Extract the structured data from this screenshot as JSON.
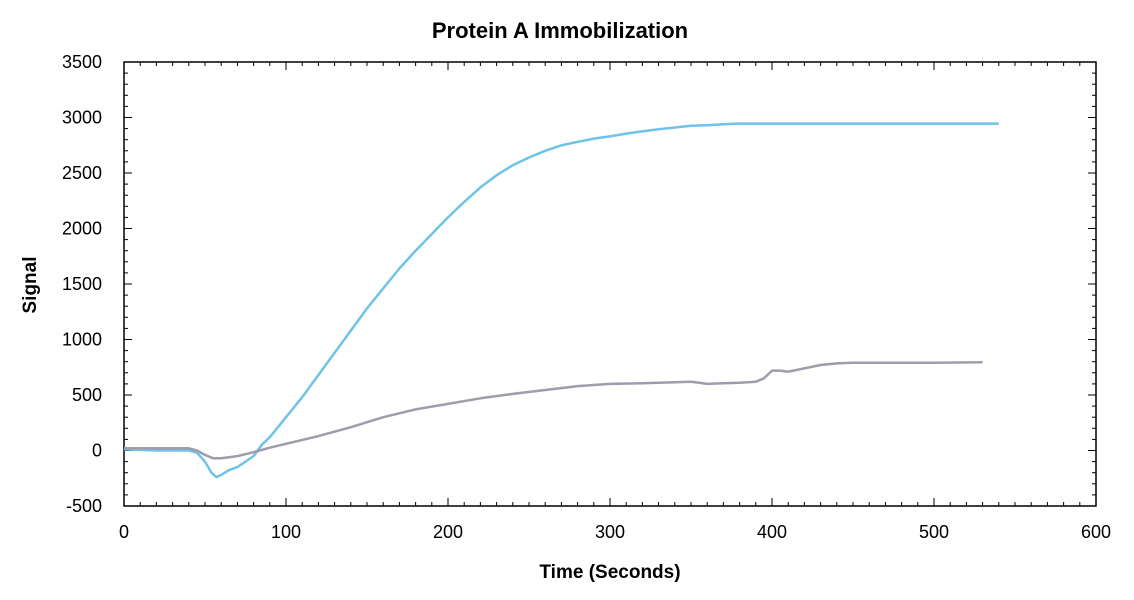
{
  "chart_data": {
    "type": "line",
    "title": "Protein A Immobilization",
    "xlabel": "Time (Seconds)",
    "ylabel": "Signal",
    "xlim": [
      0,
      600
    ],
    "ylim": [
      -500,
      3500
    ],
    "x_ticks": [
      "0",
      "100",
      "200",
      "300",
      "400",
      "500",
      "600"
    ],
    "y_ticks": [
      "-500",
      "0",
      "500",
      "1000",
      "1500",
      "2000",
      "2500",
      "3000",
      "3500"
    ],
    "grid": false,
    "legend": "none",
    "series": [
      {
        "color": "#6EC3E6",
        "x": [
          0,
          10,
          20,
          30,
          40,
          45,
          50,
          54,
          57,
          60,
          65,
          70,
          75,
          80,
          85,
          90,
          100,
          110,
          120,
          130,
          140,
          150,
          160,
          170,
          180,
          190,
          200,
          210,
          220,
          230,
          240,
          250,
          260,
          270,
          280,
          290,
          300,
          310,
          320,
          330,
          340,
          350,
          360,
          370,
          378,
          400,
          450,
          500,
          540
        ],
        "y": [
          10,
          5,
          0,
          0,
          0,
          -20,
          -100,
          -200,
          -240,
          -220,
          -175,
          -150,
          -100,
          -50,
          50,
          120,
          300,
          480,
          680,
          880,
          1080,
          1280,
          1460,
          1640,
          1800,
          1950,
          2100,
          2240,
          2370,
          2480,
          2570,
          2640,
          2700,
          2750,
          2780,
          2810,
          2830,
          2855,
          2875,
          2895,
          2910,
          2925,
          2930,
          2940,
          2945,
          2945,
          2945,
          2945,
          2945
        ]
      },
      {
        "color": "#9F9CAE",
        "x": [
          0,
          10,
          20,
          30,
          40,
          45,
          50,
          55,
          60,
          70,
          80,
          90,
          100,
          120,
          140,
          160,
          180,
          200,
          220,
          240,
          260,
          280,
          300,
          320,
          340,
          350,
          355,
          360,
          370,
          380,
          390,
          395,
          400,
          405,
          410,
          420,
          430,
          440,
          450,
          480,
          500,
          530
        ],
        "y": [
          20,
          20,
          20,
          20,
          20,
          0,
          -40,
          -70,
          -70,
          -50,
          -15,
          25,
          60,
          130,
          210,
          300,
          370,
          420,
          470,
          510,
          545,
          580,
          600,
          605,
          615,
          620,
          610,
          600,
          605,
          610,
          620,
          650,
          720,
          720,
          710,
          740,
          770,
          785,
          790,
          790,
          790,
          795
        ]
      }
    ]
  }
}
